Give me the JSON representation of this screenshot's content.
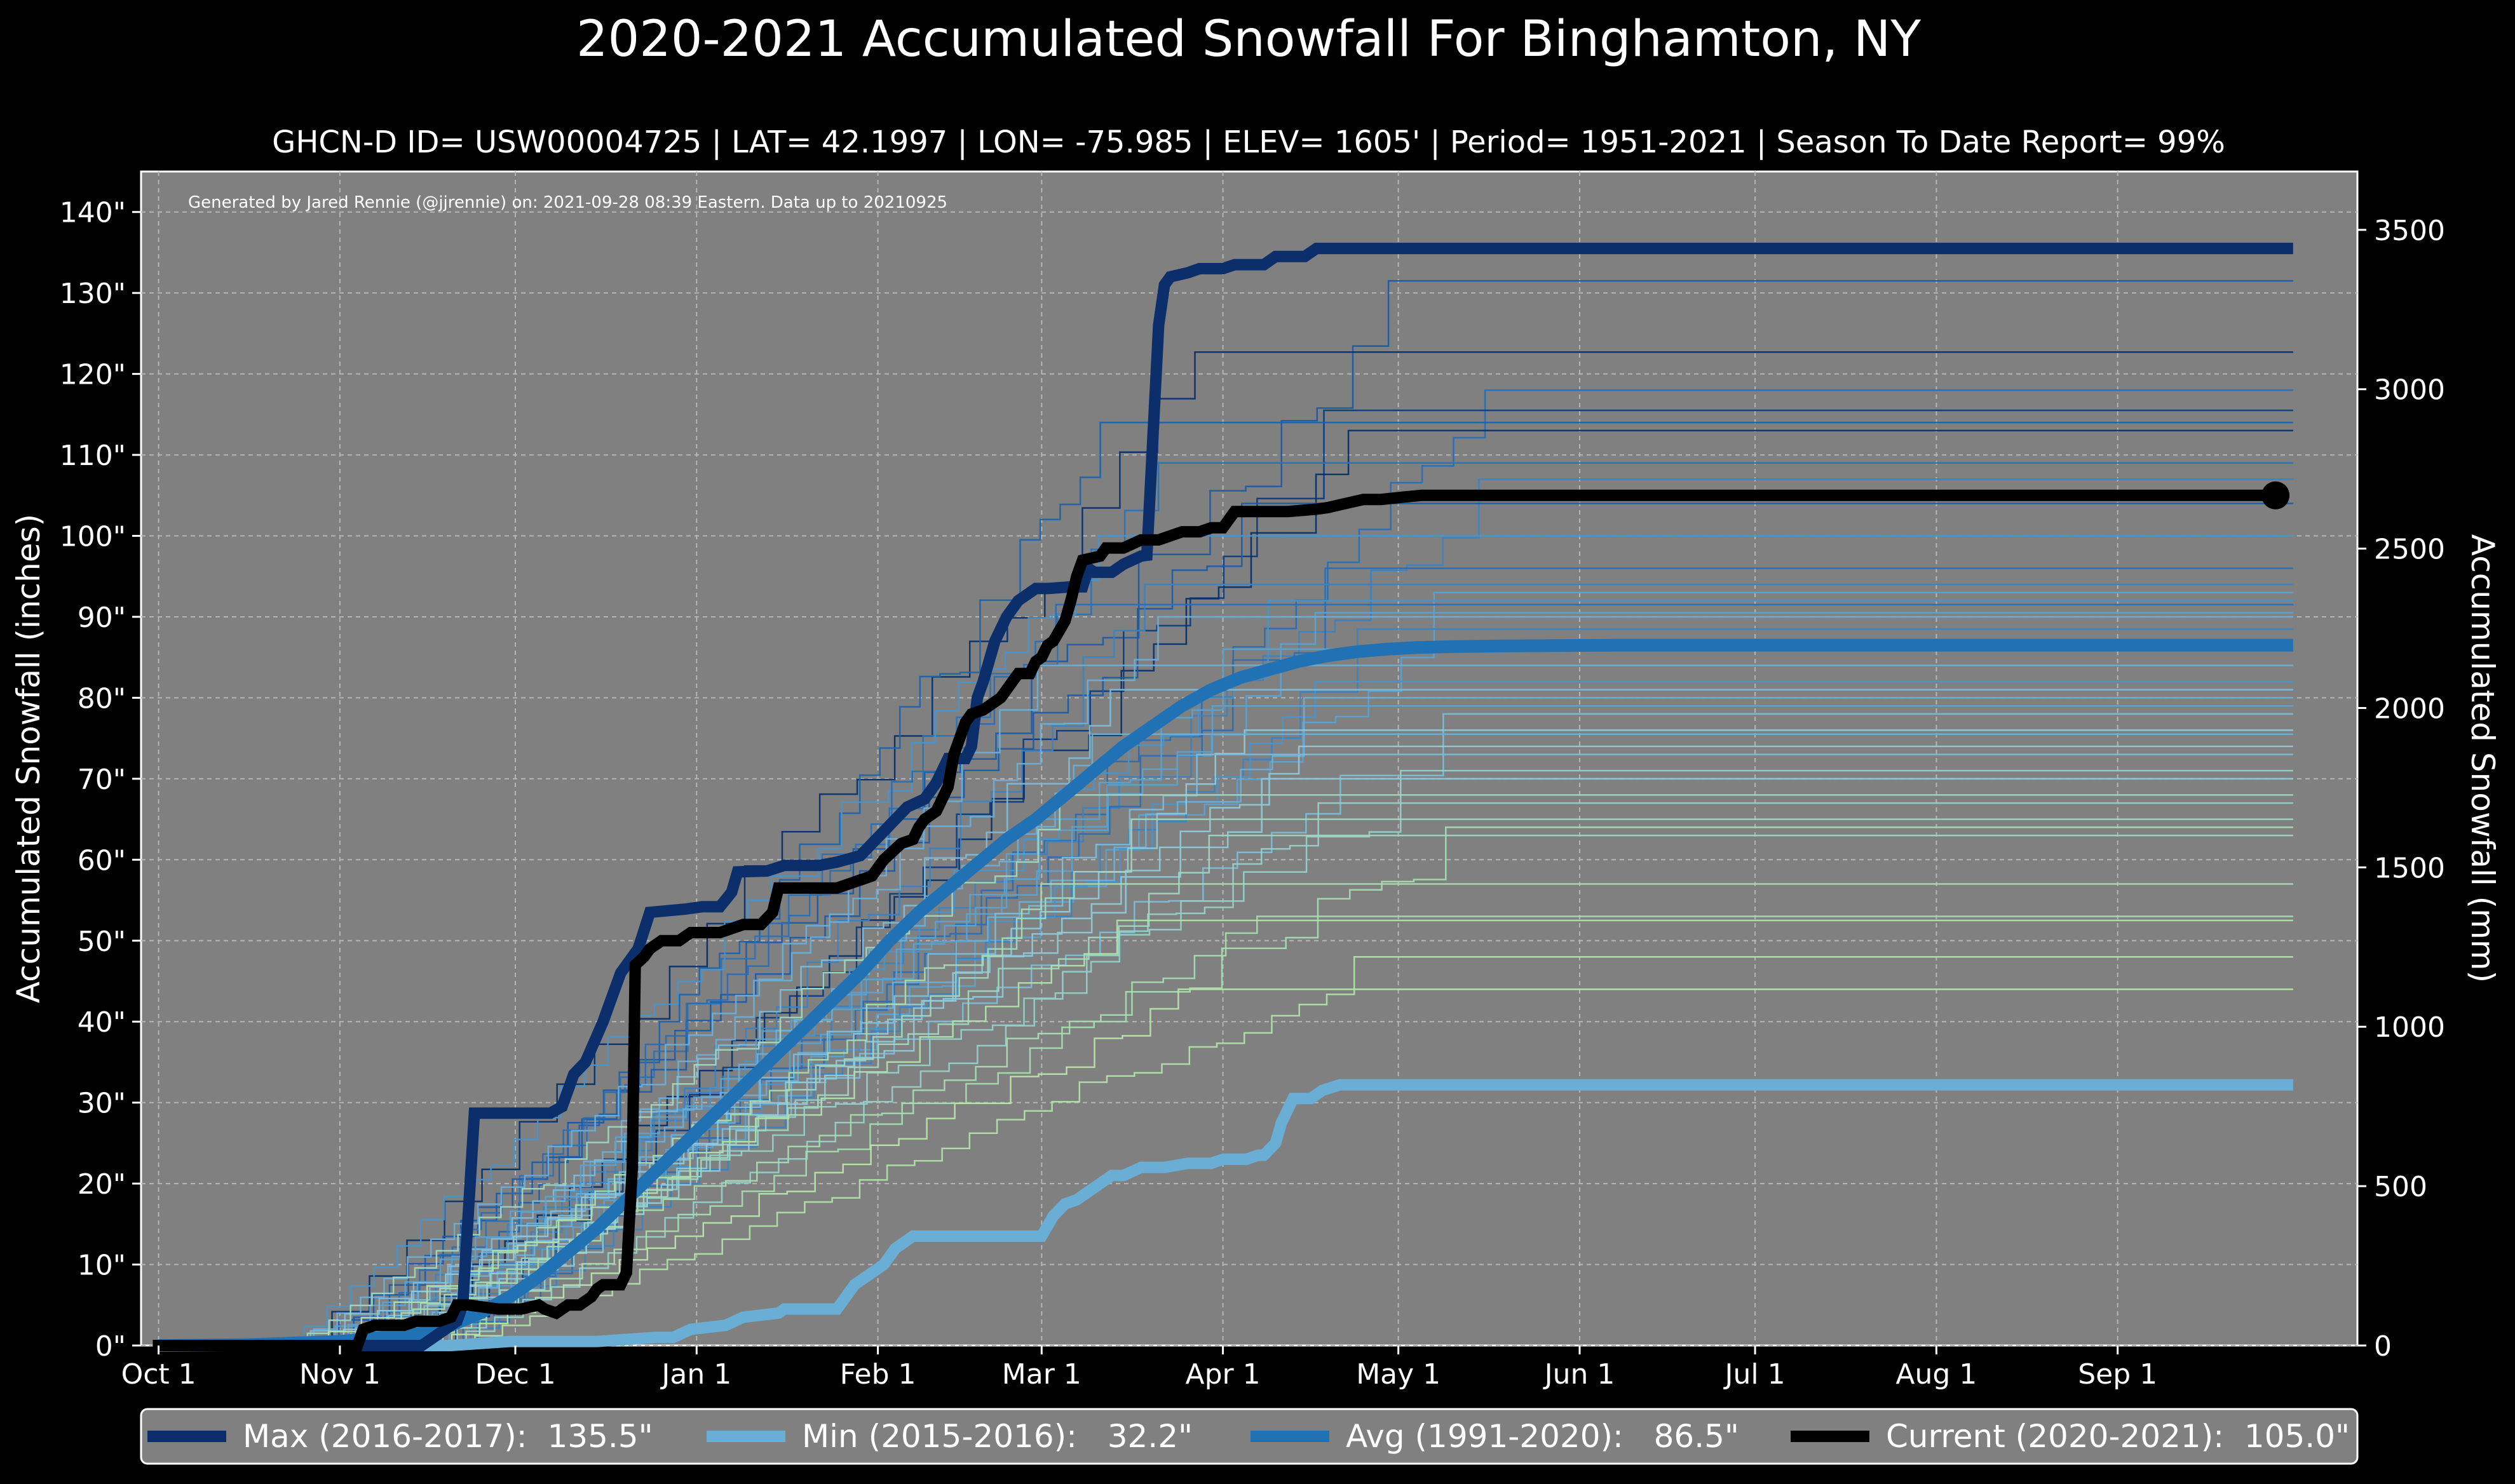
{
  "chart_data": {
    "type": "line",
    "title": "2020-2021 Accumulated Snowfall For Binghamton, NY",
    "subtitle": "GHCN-D ID= USW00004725 | LAT= 42.1997 | LON= -75.985 | ELEV= 1605' | Period= 1951-2021 | Season To Date Report= 99%",
    "credit": "Generated by Jared Rennie (@jjrennie) on: 2021-09-28 08:39 Eastern. Data up to 20210925",
    "ylabel": "Accumulated Snowfall (inches)",
    "ylabel_right": "Accumulated Snowfall (mm)",
    "ylim": [
      0,
      145
    ],
    "ylim_right_mm": [
      0,
      3683
    ],
    "y_ticks": [
      "0\"",
      "10\"",
      "20\"",
      "30\"",
      "40\"",
      "50\"",
      "60\"",
      "70\"",
      "80\"",
      "90\"",
      "100\"",
      "110\"",
      "120\"",
      "130\"",
      "140\""
    ],
    "y_right_ticks": [
      "0",
      "500",
      "1000",
      "1500",
      "2000",
      "2500",
      "3000",
      "3500"
    ],
    "x_ticks": [
      "Oct 1",
      "Nov 1",
      "Dec 1",
      "Jan 1",
      "Feb 1",
      "Mar 1",
      "Apr 1",
      "May 1",
      "Jun 1",
      "Jul 1",
      "Aug 1",
      "Sep 1"
    ],
    "x_unit": "days since Oct 1",
    "xlim": [
      -3,
      376
    ],
    "grid": true,
    "legend_position": "bottom",
    "colors": {
      "background": "#808080",
      "max": "#0c2f6b",
      "min": "#6aaed6",
      "avg": "#2171b5",
      "current": "#000000",
      "historical_dark": "#08306b",
      "historical_light": "#a1d99b"
    },
    "series": [
      {
        "name": "Max (2016-2017):  135.5\"",
        "color": "#0c2f6b",
        "points": [
          [
            0,
            0
          ],
          [
            30,
            0
          ],
          [
            45,
            0
          ],
          [
            51,
            3
          ],
          [
            52,
            5
          ],
          [
            54,
            28.7
          ],
          [
            67,
            28.7
          ],
          [
            69,
            29.5
          ],
          [
            71,
            33.5
          ],
          [
            73,
            35
          ],
          [
            76,
            40
          ],
          [
            79,
            46
          ],
          [
            82,
            49
          ],
          [
            84,
            53.5
          ],
          [
            90,
            53.9
          ],
          [
            93,
            54.2
          ],
          [
            96,
            54.2
          ],
          [
            98,
            56
          ],
          [
            99,
            58.5
          ],
          [
            104,
            58.6
          ],
          [
            107,
            59.3
          ],
          [
            113,
            59.3
          ],
          [
            116,
            59.7
          ],
          [
            120,
            60.5
          ],
          [
            122,
            62
          ],
          [
            124,
            63.5
          ],
          [
            126,
            65
          ],
          [
            128,
            66.5
          ],
          [
            131,
            67.5
          ],
          [
            133,
            69.5
          ],
          [
            135,
            72.5
          ],
          [
            138,
            72.5
          ],
          [
            139,
            74
          ],
          [
            140,
            80
          ],
          [
            141,
            82
          ],
          [
            143,
            87
          ],
          [
            145,
            90
          ],
          [
            147,
            92
          ],
          [
            150,
            93.5
          ],
          [
            152,
            93.5
          ],
          [
            156,
            93.7
          ],
          [
            158,
            93.7
          ],
          [
            159,
            96
          ],
          [
            160,
            95.5
          ],
          [
            163,
            95.5
          ],
          [
            165,
            96.5
          ],
          [
            168,
            97.5
          ],
          [
            169,
            97.6
          ],
          [
            171,
            126
          ],
          [
            172,
            131
          ],
          [
            173,
            132
          ],
          [
            176,
            132.5
          ],
          [
            178,
            133
          ],
          [
            182,
            133
          ],
          [
            184,
            133.5
          ],
          [
            189,
            133.5
          ],
          [
            191,
            134.5
          ],
          [
            196,
            134.5
          ],
          [
            198,
            135.5
          ],
          [
            365,
            135.5
          ]
        ]
      },
      {
        "name": "Min (2015-2016):   32.2\"",
        "color": "#6aaed6",
        "points": [
          [
            0,
            0
          ],
          [
            20,
            0
          ],
          [
            50,
            0
          ],
          [
            60,
            0.5
          ],
          [
            75,
            0.5
          ],
          [
            85,
            1
          ],
          [
            88,
            1
          ],
          [
            91,
            2
          ],
          [
            97,
            2.5
          ],
          [
            100,
            3.5
          ],
          [
            106,
            4
          ],
          [
            107,
            4.5
          ],
          [
            116,
            4.5
          ],
          [
            119,
            7.5
          ],
          [
            122,
            9
          ],
          [
            124,
            10
          ],
          [
            126,
            12
          ],
          [
            129,
            13.5
          ],
          [
            131,
            13.5
          ],
          [
            151,
            13.5
          ],
          [
            153,
            16
          ],
          [
            155,
            17.5
          ],
          [
            157,
            18
          ],
          [
            159,
            19
          ],
          [
            161,
            20
          ],
          [
            163,
            21
          ],
          [
            165,
            21
          ],
          [
            168,
            22
          ],
          [
            172,
            22
          ],
          [
            176,
            22.5
          ],
          [
            180,
            22.5
          ],
          [
            182,
            23
          ],
          [
            186,
            23
          ],
          [
            188,
            23.5
          ],
          [
            189,
            23.5
          ],
          [
            191,
            25
          ],
          [
            192,
            27.5
          ],
          [
            193,
            29
          ],
          [
            194,
            30.5
          ],
          [
            197,
            30.5
          ],
          [
            199,
            31.5
          ],
          [
            202,
            32.2
          ],
          [
            365,
            32.2
          ]
        ]
      },
      {
        "name": "Avg (1991-2020):   86.5\"",
        "color": "#2171b5",
        "points": [
          [
            0,
            0
          ],
          [
            15,
            0.1
          ],
          [
            31,
            0.5
          ],
          [
            45,
            1.5
          ],
          [
            50,
            2.5
          ],
          [
            55,
            4
          ],
          [
            60,
            6
          ],
          [
            65,
            8.5
          ],
          [
            70,
            11.5
          ],
          [
            75,
            14.5
          ],
          [
            80,
            18
          ],
          [
            85,
            21.5
          ],
          [
            90,
            25
          ],
          [
            95,
            28.5
          ],
          [
            100,
            32
          ],
          [
            105,
            35.5
          ],
          [
            110,
            39
          ],
          [
            115,
            42.5
          ],
          [
            120,
            46
          ],
          [
            125,
            50
          ],
          [
            130,
            53.5
          ],
          [
            135,
            56.5
          ],
          [
            140,
            59.5
          ],
          [
            145,
            62.5
          ],
          [
            150,
            65
          ],
          [
            155,
            68
          ],
          [
            160,
            71
          ],
          [
            165,
            74
          ],
          [
            170,
            76.5
          ],
          [
            175,
            79
          ],
          [
            180,
            81
          ],
          [
            185,
            82.5
          ],
          [
            190,
            83.5
          ],
          [
            195,
            84.5
          ],
          [
            200,
            85.2
          ],
          [
            205,
            85.7
          ],
          [
            210,
            86
          ],
          [
            215,
            86.2
          ],
          [
            220,
            86.3
          ],
          [
            230,
            86.4
          ],
          [
            250,
            86.5
          ],
          [
            365,
            86.5
          ]
        ]
      },
      {
        "name": "Current (2020-2021):  105.0\"",
        "color": "#000000",
        "points": [
          [
            -1,
            0
          ],
          [
            20,
            0
          ],
          [
            34,
            0
          ],
          [
            35,
            2
          ],
          [
            37,
            2.5
          ],
          [
            42,
            2.5
          ],
          [
            44,
            3
          ],
          [
            48,
            3
          ],
          [
            50,
            3.5
          ],
          [
            51,
            5
          ],
          [
            53,
            5
          ],
          [
            58,
            4.5
          ],
          [
            62,
            4.5
          ],
          [
            65,
            5
          ],
          [
            66,
            4.5
          ],
          [
            68,
            4
          ],
          [
            70,
            5
          ],
          [
            72,
            5
          ],
          [
            74,
            6
          ],
          [
            75,
            7
          ],
          [
            76,
            7.5
          ],
          [
            79,
            7.5
          ],
          [
            80,
            9
          ],
          [
            81,
            22
          ],
          [
            81.5,
            47
          ],
          [
            83,
            48
          ],
          [
            84,
            49
          ],
          [
            86,
            50
          ],
          [
            89,
            50
          ],
          [
            91,
            51
          ],
          [
            93,
            51
          ],
          [
            96,
            51
          ],
          [
            98,
            51.5
          ],
          [
            100,
            52
          ],
          [
            103,
            52
          ],
          [
            105,
            53.5
          ],
          [
            106,
            56.5
          ],
          [
            110,
            56.5
          ],
          [
            116,
            56.5
          ],
          [
            118,
            57
          ],
          [
            120,
            57.5
          ],
          [
            122,
            58
          ],
          [
            124,
            60
          ],
          [
            127,
            62
          ],
          [
            129,
            62.5
          ],
          [
            130,
            64
          ],
          [
            131,
            65
          ],
          [
            133,
            66
          ],
          [
            135,
            69
          ],
          [
            136,
            73
          ],
          [
            137,
            75
          ],
          [
            138,
            77
          ],
          [
            139,
            78
          ],
          [
            141,
            78.5
          ],
          [
            143,
            79.5
          ],
          [
            144,
            80
          ],
          [
            145,
            81
          ],
          [
            146,
            82
          ],
          [
            147,
            83
          ],
          [
            149,
            83
          ],
          [
            150,
            84.5
          ],
          [
            151,
            85
          ],
          [
            152,
            86.5
          ],
          [
            153,
            87
          ],
          [
            155,
            89.5
          ],
          [
            156,
            92
          ],
          [
            157,
            95
          ],
          [
            158,
            97
          ],
          [
            161,
            97.5
          ],
          [
            162,
            98.5
          ],
          [
            165,
            98.5
          ],
          [
            168,
            99.5
          ],
          [
            171,
            99.5
          ],
          [
            175,
            100.5
          ],
          [
            178,
            100.5
          ],
          [
            180,
            101
          ],
          [
            182,
            101
          ],
          [
            184,
            103
          ],
          [
            186,
            103
          ],
          [
            190,
            103
          ],
          [
            193,
            103
          ],
          [
            198,
            103.3
          ],
          [
            200,
            103.5
          ],
          [
            203,
            104
          ],
          [
            206,
            104.5
          ],
          [
            209,
            104.5
          ],
          [
            213,
            104.8
          ],
          [
            216,
            105
          ],
          [
            362,
            105
          ]
        ]
      }
    ],
    "historical_seasons": [
      {
        "end": 131.5,
        "speed": 1.05,
        "color": "#1c5ba6"
      },
      {
        "end": 122.7,
        "speed": 0.95,
        "color": "#08306b"
      },
      {
        "end": 118,
        "speed": 1.1,
        "color": "#2a6db3"
      },
      {
        "end": 115.5,
        "speed": 1.2,
        "color": "#0d3d80"
      },
      {
        "end": 114,
        "speed": 0.9,
        "color": "#1f62aa"
      },
      {
        "end": 113,
        "speed": 1.0,
        "color": "#08306b"
      },
      {
        "end": 109,
        "speed": 0.85,
        "color": "#2b72b6"
      },
      {
        "end": 107,
        "speed": 1.15,
        "color": "#3a82c1"
      },
      {
        "end": 104,
        "speed": 0.95,
        "color": "#1c5ba6"
      },
      {
        "end": 100,
        "speed": 1.3,
        "color": "#4892c9"
      },
      {
        "end": 96,
        "speed": 1.0,
        "color": "#2a6db3"
      },
      {
        "end": 94,
        "speed": 0.9,
        "color": "#3a82c1"
      },
      {
        "end": 93,
        "speed": 1.1,
        "color": "#5aa1d0"
      },
      {
        "end": 92,
        "speed": 1.2,
        "color": "#4892c9"
      },
      {
        "end": 91.5,
        "speed": 0.8,
        "color": "#2a6db3"
      },
      {
        "end": 90.5,
        "speed": 1.05,
        "color": "#5aa1d0"
      },
      {
        "end": 90,
        "speed": 1.25,
        "color": "#6aaed6"
      },
      {
        "end": 88.5,
        "speed": 0.95,
        "color": "#3a82c1"
      },
      {
        "end": 86,
        "speed": 1.1,
        "color": "#5aa1d0"
      },
      {
        "end": 84,
        "speed": 0.9,
        "color": "#6aaed6"
      },
      {
        "end": 82,
        "speed": 1.15,
        "color": "#4892c9"
      },
      {
        "end": 81,
        "speed": 1.0,
        "color": "#7dbad7"
      },
      {
        "end": 80,
        "speed": 0.85,
        "color": "#6aaed6"
      },
      {
        "end": 79,
        "speed": 1.2,
        "color": "#5aa1d0"
      },
      {
        "end": 78,
        "speed": 1.05,
        "color": "#7dbad7"
      },
      {
        "end": 76,
        "speed": 0.95,
        "color": "#8ec8d6"
      },
      {
        "end": 75.5,
        "speed": 1.1,
        "color": "#6aaed6"
      },
      {
        "end": 74,
        "speed": 0.9,
        "color": "#8ec8d6"
      },
      {
        "end": 73,
        "speed": 1.3,
        "color": "#7dbad7"
      },
      {
        "end": 71,
        "speed": 1.0,
        "color": "#95d0c8"
      },
      {
        "end": 70,
        "speed": 1.15,
        "color": "#8ec8d6"
      },
      {
        "end": 68,
        "speed": 0.85,
        "color": "#9fd6bd"
      },
      {
        "end": 67,
        "speed": 1.05,
        "color": "#95d0c8"
      },
      {
        "end": 65,
        "speed": 0.95,
        "color": "#9fd6bd"
      },
      {
        "end": 64,
        "speed": 1.2,
        "color": "#a6dbb0"
      },
      {
        "end": 63,
        "speed": 1.0,
        "color": "#9fd6bd"
      },
      {
        "end": 57,
        "speed": 1.1,
        "color": "#a6dbb0"
      },
      {
        "end": 53,
        "speed": 0.9,
        "color": "#a6dbb0"
      },
      {
        "end": 52.5,
        "speed": 1.05,
        "color": "#b0e0a8"
      },
      {
        "end": 48,
        "speed": 1.0,
        "color": "#b0e0a8"
      },
      {
        "end": 44,
        "speed": 0.95,
        "color": "#b7e4a5"
      }
    ],
    "current_end_marker": {
      "x": 362,
      "y": 105.0
    },
    "legend": [
      {
        "label": "Max (2016-2017):  135.5\"",
        "color": "#0c2f6b"
      },
      {
        "label": "Min (2015-2016):   32.2\"",
        "color": "#6aaed6"
      },
      {
        "label": "Avg (1991-2020):   86.5\"",
        "color": "#2171b5"
      },
      {
        "label": "Current (2020-2021):  105.0\"",
        "color": "#000000"
      }
    ]
  }
}
